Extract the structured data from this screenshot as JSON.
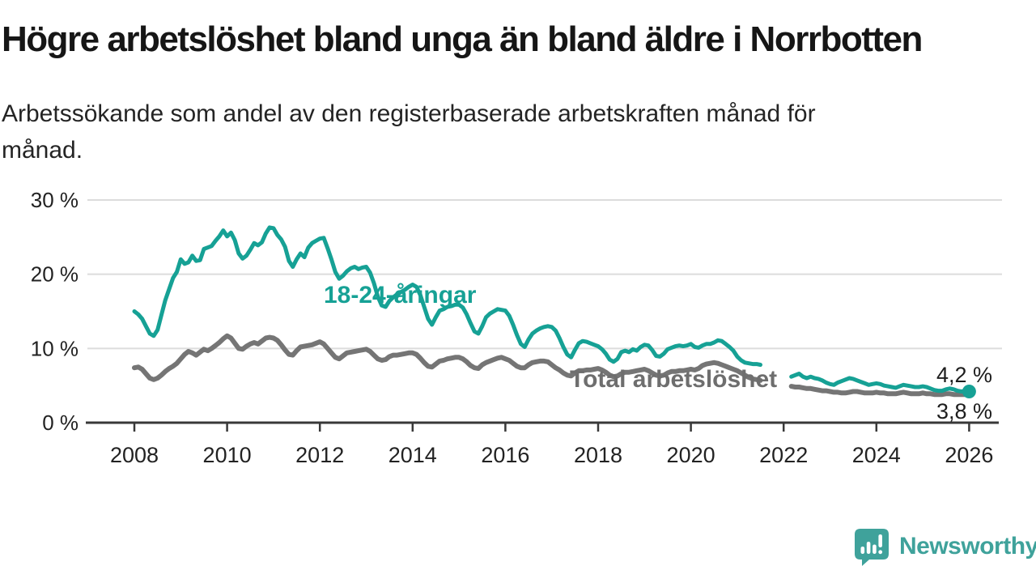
{
  "header": {
    "title": "Högre arbetslöshet bland unga än bland äldre i Norrbotten",
    "subtitle": "Arbetssökande som andel av den registerbaserade arbetskraften månad för månad.",
    "subtitle_lines": [
      "Arbetssökande som andel av den registerbaserade arbetskraften månad för",
      "månad."
    ]
  },
  "chart": {
    "y_ticks": [
      {
        "label": "30 %",
        "value": 30
      },
      {
        "label": "20 %",
        "value": 20
      },
      {
        "label": "10 %",
        "value": 10
      },
      {
        "label": "0 %",
        "value": 0
      }
    ],
    "x_ticks": [
      {
        "label": "2008",
        "year": 2008
      },
      {
        "label": "2010",
        "year": 2010
      },
      {
        "label": "2012",
        "year": 2012
      },
      {
        "label": "2014",
        "year": 2014
      },
      {
        "label": "2016",
        "year": 2016
      },
      {
        "label": "2018",
        "year": 2018
      },
      {
        "label": "2020",
        "year": 2020
      },
      {
        "label": "2022",
        "year": 2022
      },
      {
        "label": "2024",
        "year": 2024
      },
      {
        "label": "2026",
        "year": 2026
      }
    ],
    "series_labels": {
      "youth": "18-24-åringar",
      "total": "Total arbetslöshet"
    },
    "end_labels": {
      "youth": "4,2 %",
      "total": "3,8 %"
    },
    "colors": {
      "youth": "#16a195",
      "total": "#757575",
      "total_label": "#6e6e6e",
      "grid": "#dcdcdc",
      "axis": "#383838",
      "tick_text": "#222222",
      "logo_teal": "#3fa29b"
    }
  },
  "chart_data": {
    "type": "line",
    "title": "Högre arbetslöshet bland unga än bland äldre i Norrbotten",
    "unit": "%",
    "ylim": [
      0,
      30
    ],
    "grid": true,
    "x_start_month": "2008-01",
    "x_end_month": "2026-01",
    "x_step": "1 month",
    "note": "values are percent of registered labour force; null = break in series between Aug 2021 and Feb 2022",
    "series": [
      {
        "name": "18-24-åringar",
        "color": "#16a195",
        "end_value_label": "4,2 %",
        "values": [
          15.0,
          14.6,
          14.0,
          13.0,
          12.0,
          11.7,
          12.5,
          14.5,
          16.5,
          18.0,
          19.5,
          20.3,
          22.0,
          21.4,
          21.6,
          22.5,
          21.8,
          21.9,
          23.4,
          23.6,
          23.8,
          24.5,
          25.1,
          25.9,
          25.1,
          25.6,
          24.6,
          22.8,
          22.1,
          22.5,
          23.3,
          24.2,
          23.9,
          24.3,
          25.5,
          26.3,
          26.2,
          25.3,
          24.7,
          23.7,
          21.8,
          21.0,
          22.0,
          22.8,
          22.3,
          23.6,
          24.2,
          24.5,
          24.8,
          24.9,
          23.5,
          22.0,
          20.3,
          19.4,
          19.8,
          20.4,
          20.8,
          21.0,
          20.7,
          20.9,
          21.0,
          20.2,
          18.8,
          17.0,
          15.8,
          15.6,
          16.4,
          16.9,
          17.3,
          17.6,
          17.9,
          18.3,
          18.6,
          18.3,
          17.2,
          15.6,
          14.0,
          13.2,
          14.2,
          15.1,
          15.3,
          15.6,
          15.7,
          15.9,
          15.9,
          15.5,
          14.6,
          13.4,
          12.3,
          12.0,
          13.0,
          14.2,
          14.7,
          15.0,
          15.3,
          15.2,
          15.1,
          14.4,
          13.2,
          11.8,
          10.6,
          10.2,
          11.2,
          12.0,
          12.4,
          12.7,
          12.9,
          13.0,
          12.9,
          12.4,
          11.4,
          10.2,
          9.2,
          8.8,
          9.8,
          10.7,
          11.0,
          10.9,
          10.7,
          10.5,
          10.3,
          9.9,
          9.3,
          8.5,
          8.2,
          8.6,
          9.5,
          9.7,
          9.5,
          9.9,
          9.7,
          10.2,
          10.5,
          10.4,
          9.8,
          9.0,
          8.9,
          9.3,
          9.9,
          10.1,
          10.3,
          10.4,
          10.3,
          10.4,
          10.6,
          10.2,
          10.1,
          10.4,
          10.6,
          10.6,
          10.8,
          11.1,
          11.0,
          10.6,
          10.2,
          9.7,
          8.9,
          8.4,
          8.1,
          8.0,
          7.9,
          7.9,
          7.8,
          null,
          null,
          null,
          null,
          null,
          null,
          null,
          6.2,
          6.4,
          6.6,
          6.2,
          6.0,
          6.2,
          6.0,
          5.9,
          5.7,
          5.4,
          5.2,
          5.1,
          5.4,
          5.6,
          5.8,
          6.0,
          5.9,
          5.7,
          5.5,
          5.3,
          5.1,
          5.2,
          5.3,
          5.2,
          5.0,
          4.9,
          4.8,
          4.7,
          4.9,
          5.1,
          5.0,
          4.9,
          4.8,
          4.8,
          4.9,
          4.8,
          4.6,
          4.4,
          4.3,
          4.3,
          4.5,
          4.6,
          4.5,
          4.3,
          4.2,
          4.3,
          4.2
        ]
      },
      {
        "name": "Total arbetslöshet",
        "color": "#757575",
        "end_value_label": "3,8 %",
        "values": [
          7.4,
          7.5,
          7.2,
          6.6,
          6.0,
          5.8,
          6.0,
          6.4,
          6.9,
          7.3,
          7.6,
          8.0,
          8.6,
          9.2,
          9.6,
          9.4,
          9.1,
          9.5,
          9.9,
          9.7,
          10.0,
          10.4,
          10.8,
          11.3,
          11.7,
          11.4,
          10.7,
          10.0,
          9.9,
          10.3,
          10.6,
          10.8,
          10.6,
          11.0,
          11.4,
          11.5,
          11.4,
          11.1,
          10.5,
          9.8,
          9.2,
          9.1,
          9.7,
          10.2,
          10.3,
          10.4,
          10.5,
          10.7,
          10.9,
          10.6,
          10.0,
          9.4,
          8.8,
          8.6,
          9.0,
          9.4,
          9.5,
          9.6,
          9.7,
          9.8,
          9.9,
          9.6,
          9.1,
          8.6,
          8.4,
          8.5,
          8.9,
          9.1,
          9.1,
          9.2,
          9.3,
          9.4,
          9.4,
          9.2,
          8.7,
          8.1,
          7.6,
          7.5,
          7.9,
          8.3,
          8.4,
          8.6,
          8.7,
          8.8,
          8.8,
          8.6,
          8.2,
          7.7,
          7.4,
          7.3,
          7.8,
          8.1,
          8.3,
          8.5,
          8.7,
          8.8,
          8.6,
          8.4,
          8.0,
          7.6,
          7.4,
          7.4,
          7.8,
          8.1,
          8.2,
          8.3,
          8.3,
          8.2,
          7.8,
          7.4,
          7.1,
          6.7,
          6.4,
          6.3,
          6.7,
          7.0,
          7.0,
          7.1,
          7.1,
          7.2,
          7.3,
          7.1,
          6.8,
          6.4,
          6.2,
          6.3,
          6.6,
          6.8,
          6.8,
          6.9,
          7.0,
          7.1,
          7.2,
          7.0,
          6.7,
          6.4,
          6.3,
          6.4,
          6.7,
          6.9,
          6.9,
          7.0,
          7.0,
          7.1,
          7.2,
          7.1,
          7.3,
          7.7,
          7.9,
          8.0,
          8.1,
          8.0,
          7.8,
          7.6,
          7.4,
          7.2,
          7.0,
          6.7,
          6.4,
          6.1,
          5.9,
          5.8,
          5.7,
          null,
          null,
          null,
          null,
          null,
          null,
          null,
          4.9,
          4.8,
          4.8,
          4.7,
          4.6,
          4.6,
          4.5,
          4.4,
          4.3,
          4.3,
          4.2,
          4.1,
          4.1,
          4.0,
          4.0,
          4.1,
          4.2,
          4.2,
          4.1,
          4.0,
          4.0,
          4.0,
          4.1,
          4.0,
          4.0,
          3.9,
          3.9,
          3.9,
          4.0,
          4.1,
          4.0,
          3.9,
          3.9,
          3.9,
          4.0,
          3.9,
          3.9,
          3.8,
          3.8,
          3.8,
          3.9,
          3.9,
          3.8,
          3.8,
          3.8,
          3.8,
          3.8
        ]
      }
    ]
  },
  "footer": {
    "brand": "Newsworthy"
  }
}
